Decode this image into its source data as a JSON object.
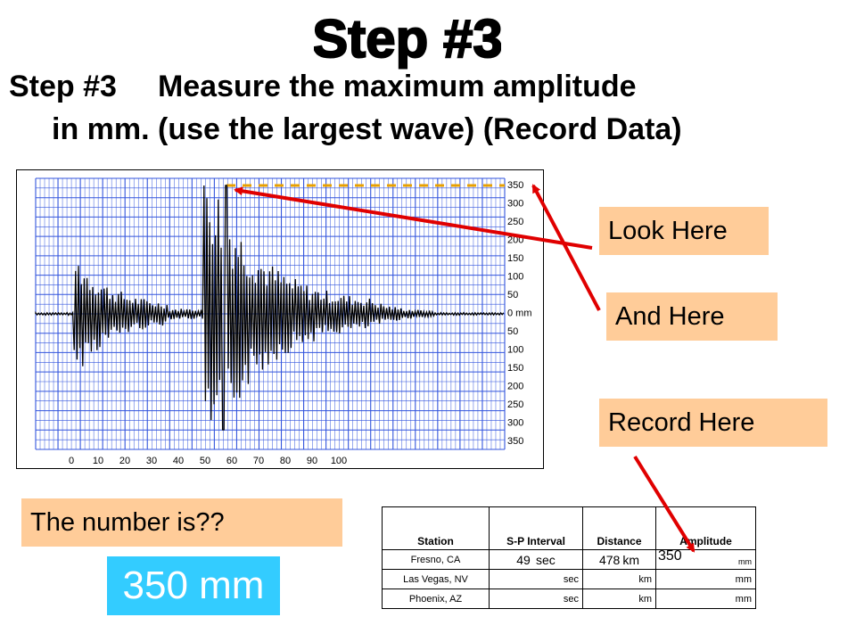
{
  "slide": {
    "big_title": "Step #3",
    "heading_line1_step": "Step #3",
    "heading_line1_text": "Measure the maximum amplitude",
    "heading_line2": "in mm. (use the largest wave) (Record Data)"
  },
  "callouts": {
    "look_here": "Look Here",
    "and_here": "And Here",
    "record_here": "Record Here",
    "the_number": "The number is??",
    "answer": "350 mm"
  },
  "seismogram": {
    "y_scale": [
      "350",
      "300",
      "250",
      "200",
      "150",
      "100",
      "50",
      "0 mm",
      "50",
      "100",
      "150",
      "200",
      "250",
      "300",
      "350"
    ],
    "x_scale": [
      "0",
      "10",
      "20",
      "30",
      "40",
      "50",
      "60",
      "70",
      "80",
      "90",
      "100"
    ]
  },
  "table": {
    "headers": {
      "station": "Station",
      "sp_interval": "S-P Interval",
      "distance": "Distance",
      "amplitude": "Amplitude"
    },
    "rows": [
      {
        "station": "Fresno, CA",
        "sp_value": "49",
        "sp_unit": "sec",
        "dist_value": "478",
        "dist_unit": "km",
        "amp_value": "350",
        "amp_unit": "mm"
      },
      {
        "station": "Las Vegas, NV",
        "sp_value": "",
        "sp_unit": "sec",
        "dist_value": "",
        "dist_unit": "km",
        "amp_value": "",
        "amp_unit": "mm"
      },
      {
        "station": "Phoenix, AZ",
        "sp_value": "",
        "sp_unit": "sec",
        "dist_value": "",
        "dist_unit": "km",
        "amp_value": "",
        "amp_unit": "mm"
      }
    ]
  },
  "colors": {
    "callout_bg": "#FFCC99",
    "answer_bg": "#33CCFF",
    "arrow": "#E00000",
    "grid_line": "#3355DD",
    "max_marker": "#E8A000"
  }
}
